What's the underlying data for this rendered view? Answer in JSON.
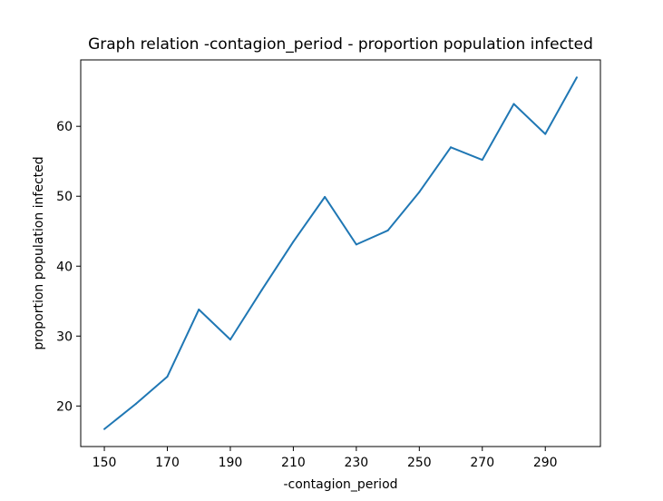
{
  "chart_data": {
    "type": "line",
    "title": "Graph relation -contagion_period - proportion population infected",
    "xlabel": "-contagion_period",
    "ylabel": "proportion population infected",
    "x": [
      150,
      160,
      170,
      180,
      190,
      200,
      210,
      220,
      230,
      240,
      250,
      260,
      270,
      280,
      290,
      300
    ],
    "series": [
      {
        "values": [
          16.7,
          20.3,
          24.2,
          33.8,
          29.5,
          36.6,
          43.5,
          49.9,
          43.1,
          45.1,
          50.6,
          57.0,
          55.2,
          63.2,
          58.9,
          67.0
        ],
        "color": "#1f77b4"
      }
    ],
    "xticks": [
      150,
      170,
      190,
      210,
      230,
      250,
      270,
      290
    ],
    "yticks": [
      20,
      30,
      40,
      50,
      60
    ],
    "xlim": [
      142.5,
      307.5
    ],
    "ylim": [
      14.2,
      69.5
    ],
    "grid": false,
    "legend": "none"
  }
}
